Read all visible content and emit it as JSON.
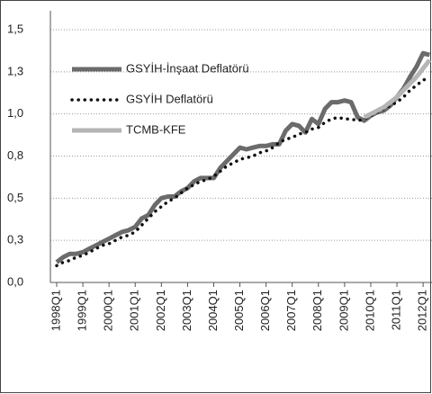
{
  "chart_data": {
    "type": "line",
    "categories": [
      "1998Q1",
      null,
      null,
      null,
      "1999Q1",
      null,
      null,
      null,
      "2000Q1",
      null,
      null,
      null,
      "2001Q1",
      null,
      null,
      null,
      "2002Q1",
      null,
      null,
      null,
      "2003Q1",
      null,
      null,
      null,
      "2004Q1",
      null,
      null,
      null,
      "2005Q1",
      null,
      null,
      null,
      "2006Q1",
      null,
      null,
      null,
      "2007Q1",
      null,
      null,
      null,
      "2008Q1",
      null,
      null,
      null,
      "2009Q1",
      null,
      null,
      null,
      "2010Q1",
      null,
      null,
      null,
      "2011Q1",
      null,
      null,
      null,
      "2012Q1",
      null
    ],
    "series": [
      {
        "name": "GSYİH-İnşaat Deflatörü",
        "color": "#6b6b6b",
        "style": "solid",
        "values": [
          0.12,
          0.15,
          0.17,
          0.17,
          0.18,
          0.2,
          0.22,
          0.24,
          0.26,
          0.28,
          0.3,
          0.31,
          0.33,
          0.38,
          0.4,
          0.46,
          0.5,
          0.51,
          0.51,
          0.54,
          0.56,
          0.6,
          0.62,
          0.62,
          0.62,
          0.68,
          0.72,
          0.76,
          0.8,
          0.79,
          0.8,
          0.81,
          0.81,
          0.82,
          0.82,
          0.9,
          0.94,
          0.93,
          0.89,
          0.97,
          0.94,
          1.03,
          1.07,
          1.07,
          1.08,
          1.07,
          0.98,
          0.96,
          0.99,
          1.01,
          1.02,
          1.05,
          1.1,
          1.15,
          1.22,
          1.28,
          1.36,
          1.35
        ]
      },
      {
        "name": "GSYİH Deflatörü",
        "color": "#111111",
        "style": "dotted",
        "values": [
          0.1,
          0.12,
          0.13,
          0.15,
          0.16,
          0.18,
          0.2,
          0.22,
          0.23,
          0.25,
          0.27,
          0.28,
          0.3,
          0.34,
          0.38,
          0.42,
          0.45,
          0.48,
          0.5,
          0.53,
          0.56,
          0.58,
          0.6,
          0.61,
          0.63,
          0.66,
          0.69,
          0.71,
          0.73,
          0.74,
          0.75,
          0.77,
          0.78,
          0.8,
          0.83,
          0.85,
          0.86,
          0.88,
          0.89,
          0.91,
          0.92,
          0.95,
          0.97,
          0.98,
          0.97,
          0.97,
          0.96,
          0.97,
          0.99,
          1.01,
          1.03,
          1.05,
          1.07,
          1.1,
          1.14,
          1.17,
          1.2,
          1.22
        ]
      },
      {
        "name": "TCMB-KFE",
        "color": "#b5b5b5",
        "style": "solid",
        "values": [
          null,
          null,
          null,
          null,
          null,
          null,
          null,
          null,
          null,
          null,
          null,
          null,
          null,
          null,
          null,
          null,
          null,
          null,
          null,
          null,
          null,
          null,
          null,
          null,
          null,
          null,
          null,
          null,
          null,
          null,
          null,
          null,
          null,
          null,
          null,
          null,
          null,
          null,
          null,
          null,
          null,
          null,
          null,
          null,
          null,
          null,
          null,
          0.98,
          1.0,
          1.02,
          1.04,
          1.07,
          1.1,
          1.14,
          1.18,
          1.22,
          1.27,
          1.32
        ]
      }
    ],
    "ylim": [
      0,
      1.5
    ],
    "yticks": [
      {
        "value": 0,
        "label": "0,0"
      },
      {
        "value": 0.25,
        "label": "0,3"
      },
      {
        "value": 0.5,
        "label": "0,5"
      },
      {
        "value": 0.75,
        "label": "0,8"
      },
      {
        "value": 1.0,
        "label": "1,0"
      },
      {
        "value": 1.25,
        "label": "1,3"
      },
      {
        "value": 1.5,
        "label": "1,5"
      }
    ],
    "grid": true,
    "legend": "upper-left"
  }
}
